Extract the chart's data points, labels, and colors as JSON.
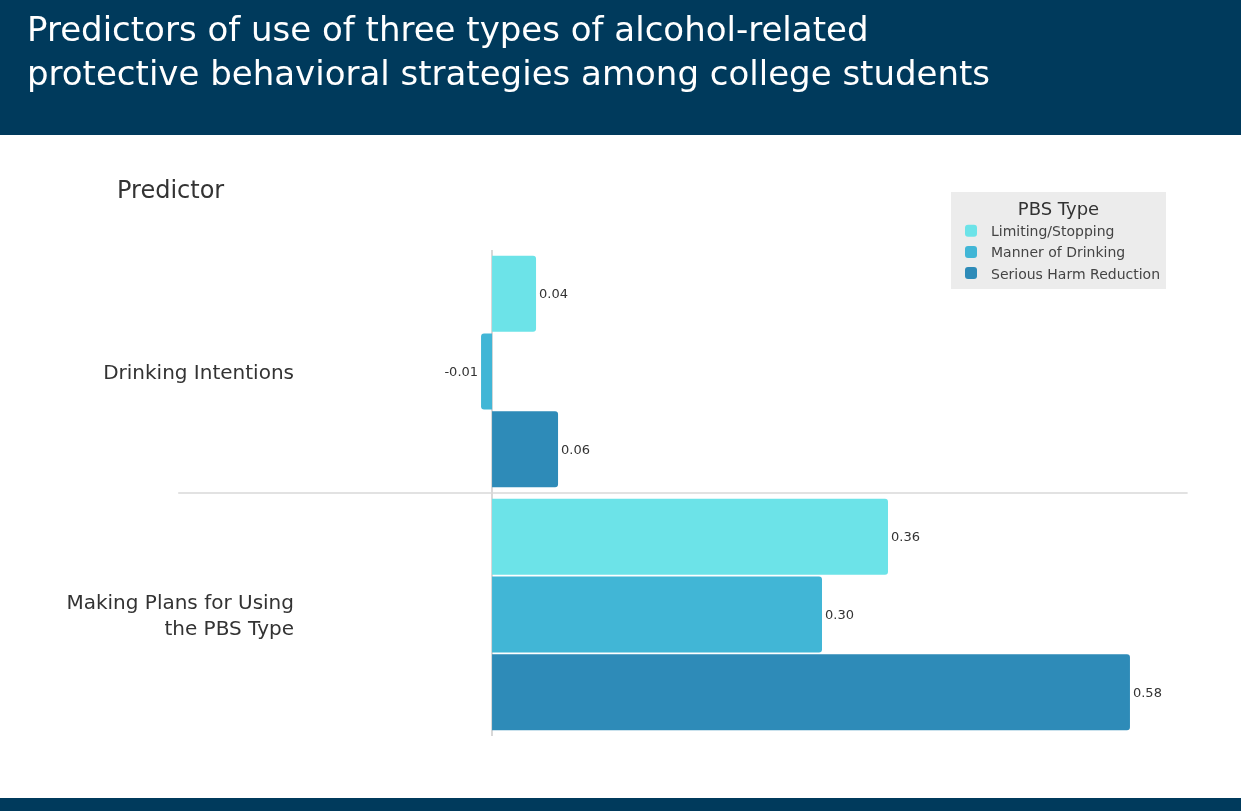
{
  "chart_data": {
    "type": "bar",
    "orientation": "horizontal",
    "title": "Predictors of use of three types of alcohol-related\nprotective behavioral strategies among college students",
    "ylabel": "Predictor",
    "legend_title": "PBS Type",
    "legend": "top right",
    "categories": [
      "Drinking Intentions",
      "Making Plans for Using\nthe PBS Type"
    ],
    "series": [
      {
        "name": "Limiting/Stopping",
        "color": "#6ce3e8",
        "values": [
          0.04,
          0.36
        ],
        "value_labels": [
          "0.04",
          "0.36"
        ]
      },
      {
        "name": "Manner of Drinking",
        "color": "#41b6d6",
        "values": [
          -0.01,
          0.3
        ],
        "value_labels": [
          "-0.01",
          "0.30"
        ]
      },
      {
        "name": "Serious Harm Reduction",
        "color": "#2e8bb8",
        "values": [
          0.06,
          0.58
        ],
        "value_labels": [
          "0.06",
          "0.58"
        ]
      }
    ]
  }
}
